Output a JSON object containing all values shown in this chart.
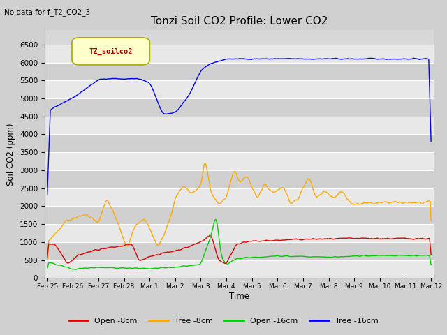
{
  "title": "Tonzi Soil CO2 Profile: Lower CO2",
  "no_data_text": "No data for f_T2_CO2_3",
  "legend_box_text": "TZ_soilco2",
  "xlabel": "Time",
  "ylabel": "Soil CO2 (ppm)",
  "ylim": [
    0,
    6900
  ],
  "yticks": [
    0,
    500,
    1000,
    1500,
    2000,
    2500,
    3000,
    3500,
    4000,
    4500,
    5000,
    5500,
    6000,
    6500
  ],
  "background_color": "#d8d8d8",
  "plot_bg_color": "#d8d8d8",
  "band_light": "#e8e8e8",
  "band_dark": "#c8c8c8",
  "grid_color": "#ffffff",
  "colors": {
    "open_8cm": "#dd0000",
    "tree_8cm": "#ffaa00",
    "open_16cm": "#00cc00",
    "tree_16cm": "#0000ee"
  },
  "legend_labels": [
    "Open -8cm",
    "Tree -8cm",
    "Open -16cm",
    "Tree -16cm"
  ],
  "x_tick_labels": [
    "Feb 25",
    "Feb 26",
    "Feb 27",
    "Feb 28",
    "Mar 1",
    "Mar 2",
    "Mar 3",
    "Mar 4",
    "Mar 5",
    "Mar 6",
    "Mar 7",
    "Mar 8",
    "Mar 9",
    "Mar 10",
    "Mar 11",
    "Mar 12"
  ],
  "n_points": 500
}
